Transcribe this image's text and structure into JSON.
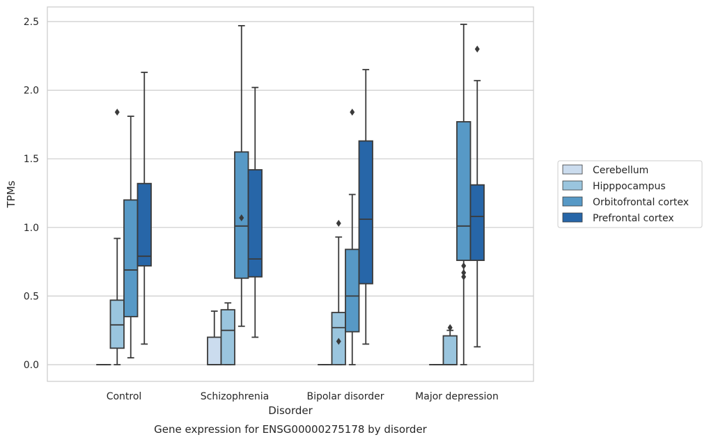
{
  "chart_data": {
    "type": "boxplot",
    "title": "",
    "caption": "Gene expression for ENSG00000275178 by disorder",
    "xlabel": "Disorder",
    "ylabel": "TPMs",
    "ylim": [
      -0.12,
      2.62
    ],
    "yticks": [
      0.0,
      0.5,
      1.0,
      1.5,
      2.0,
      2.5
    ],
    "ytick_labels": [
      "0.0",
      "0.5",
      "1.0",
      "1.5",
      "2.0",
      "2.5"
    ],
    "grid": "horizontal",
    "legend_position": "right",
    "categories": [
      "Control",
      "Schizophrenia",
      "Bipolar disorder",
      "Major depression"
    ],
    "series": [
      {
        "name": "Cerebellum",
        "color": "#cbdcee",
        "boxes": [
          {
            "whisker_low": 0.0,
            "q1": 0.0,
            "median": 0.0,
            "q3": 0.0,
            "whisker_high": 0.0,
            "outliers": []
          },
          {
            "whisker_low": 0.0,
            "q1": 0.0,
            "median": 0.0,
            "q3": 0.2,
            "whisker_high": 0.39,
            "outliers": []
          },
          {
            "whisker_low": 0.0,
            "q1": 0.0,
            "median": 0.0,
            "q3": 0.0,
            "whisker_high": 0.0,
            "outliers": []
          },
          {
            "whisker_low": 0.0,
            "q1": 0.0,
            "median": 0.0,
            "q3": 0.0,
            "whisker_high": 0.0,
            "outliers": []
          }
        ]
      },
      {
        "name": "Hipppocampus",
        "color": "#9ac5de",
        "boxes": [
          {
            "whisker_low": 0.0,
            "q1": 0.12,
            "median": 0.29,
            "q3": 0.47,
            "whisker_high": 0.92,
            "outliers": [
              1.84
            ]
          },
          {
            "whisker_low": 0.0,
            "q1": 0.0,
            "median": 0.25,
            "q3": 0.4,
            "whisker_high": 0.45,
            "outliers": []
          },
          {
            "whisker_low": 0.0,
            "q1": 0.0,
            "median": 0.27,
            "q3": 0.38,
            "whisker_high": 0.93,
            "outliers": [
              0.17,
              1.03
            ]
          },
          {
            "whisker_low": 0.0,
            "q1": 0.0,
            "median": 0.0,
            "q3": 0.21,
            "whisker_high": 0.25,
            "outliers": [
              0.27
            ]
          }
        ]
      },
      {
        "name": "Orbitofrontal cortex",
        "color": "#5799c6",
        "boxes": [
          {
            "whisker_low": 0.05,
            "q1": 0.35,
            "median": 0.69,
            "q3": 1.2,
            "whisker_high": 1.81,
            "outliers": []
          },
          {
            "whisker_low": 0.28,
            "q1": 0.63,
            "median": 1.01,
            "q3": 1.55,
            "whisker_high": 2.47,
            "outliers": [
              1.07
            ]
          },
          {
            "whisker_low": 0.0,
            "q1": 0.24,
            "median": 0.5,
            "q3": 0.84,
            "whisker_high": 1.24,
            "outliers": [
              1.84
            ]
          },
          {
            "whisker_low": 0.0,
            "q1": 0.76,
            "median": 1.01,
            "q3": 1.77,
            "whisker_high": 2.48,
            "outliers": [
              0.64,
              0.67,
              0.72
            ]
          }
        ]
      },
      {
        "name": "Prefrontal cortex",
        "color": "#2766a8",
        "boxes": [
          {
            "whisker_low": 0.15,
            "q1": 0.72,
            "median": 0.79,
            "q3": 1.32,
            "whisker_high": 2.13,
            "outliers": []
          },
          {
            "whisker_low": 0.2,
            "q1": 0.64,
            "median": 0.77,
            "q3": 1.42,
            "whisker_high": 2.02,
            "outliers": []
          },
          {
            "whisker_low": 0.15,
            "q1": 0.59,
            "median": 1.06,
            "q3": 1.63,
            "whisker_high": 2.15,
            "outliers": []
          },
          {
            "whisker_low": 0.13,
            "q1": 0.76,
            "median": 1.08,
            "q3": 1.31,
            "whisker_high": 2.07,
            "outliers": [
              2.3
            ]
          }
        ]
      }
    ]
  }
}
